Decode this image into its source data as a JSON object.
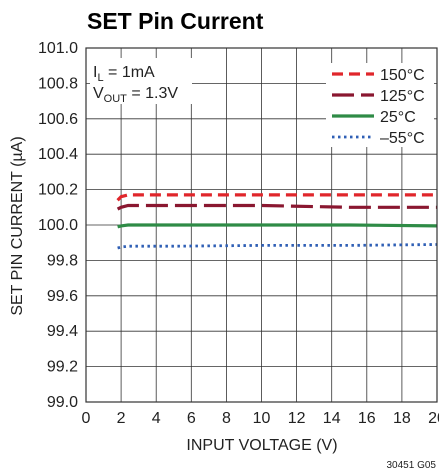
{
  "chart_data": {
    "type": "line",
    "title": "SET Pin Current",
    "xlabel": "INPUT VOLTAGE (V)",
    "ylabel": "SET PIN CURRENT (µA)",
    "xlim": [
      0,
      20
    ],
    "ylim": [
      99.0,
      101.0
    ],
    "x_ticks": [
      "0",
      "2",
      "4",
      "6",
      "8",
      "10",
      "12",
      "14",
      "16",
      "18",
      "20"
    ],
    "y_ticks": [
      "99.0",
      "99.2",
      "99.4",
      "99.6",
      "99.8",
      "100.0",
      "100.2",
      "100.4",
      "100.6",
      "100.8",
      "101.0"
    ],
    "grid": true,
    "legend_position": "top-right",
    "annotations": {
      "line1_main": "I",
      "line1_sub": "L",
      "line1_rest": " = 1mA",
      "line2_main": "V",
      "line2_sub": "OUT",
      "line2_rest": " = 1.3V"
    },
    "figure_id": "30451 G05",
    "series": [
      {
        "name": "150°C",
        "color": "#e0262b",
        "dash": "dash",
        "x": [
          1.8,
          2.0,
          2.4,
          3.0,
          5,
          10,
          15,
          20
        ],
        "y": [
          100.14,
          100.16,
          100.17,
          100.17,
          100.17,
          100.17,
          100.17,
          100.17
        ]
      },
      {
        "name": "125°C",
        "color": "#8a1730",
        "dash": "longdash",
        "x": [
          1.8,
          2.0,
          2.4,
          3.0,
          5,
          10,
          15,
          20
        ],
        "y": [
          100.09,
          100.1,
          100.11,
          100.11,
          100.11,
          100.11,
          100.1,
          100.1
        ]
      },
      {
        "name": "25°C",
        "color": "#2e8b46",
        "dash": "solid",
        "x": [
          1.8,
          2.0,
          2.4,
          3.0,
          5,
          10,
          15,
          20
        ],
        "y": [
          99.99,
          99.995,
          100.0,
          100.0,
          100.0,
          100.0,
          100.0,
          99.995
        ]
      },
      {
        "name": "–55°C",
        "color": "#2f5fb5",
        "dash": "dot",
        "x": [
          1.8,
          2.0,
          2.4,
          3.0,
          5,
          10,
          15,
          20
        ],
        "y": [
          99.87,
          99.875,
          99.88,
          99.88,
          99.88,
          99.885,
          99.885,
          99.89
        ]
      }
    ]
  }
}
